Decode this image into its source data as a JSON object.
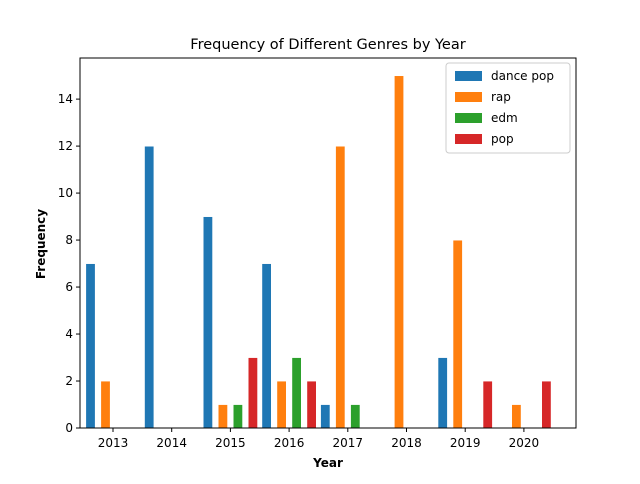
{
  "chart_data": {
    "type": "bar",
    "title": "Frequency of Different Genres by Year",
    "xlabel": "Year",
    "ylabel": "Frequency",
    "categories": [
      "2013",
      "2014",
      "2015",
      "2016",
      "2017",
      "2018",
      "2019",
      "2020"
    ],
    "ylim": [
      0,
      15.75
    ],
    "yticks": [
      "0",
      "2",
      "4",
      "6",
      "8",
      "10",
      "12",
      "14"
    ],
    "grid": false,
    "legend_position": "top-right",
    "series": [
      {
        "name": "dance pop",
        "color": "#1f77b4",
        "values": [
          7,
          12,
          9,
          7,
          1,
          0,
          3,
          0
        ]
      },
      {
        "name": "rap",
        "color": "#ff7f0e",
        "values": [
          2,
          0,
          1,
          2,
          12,
          15,
          8,
          1
        ]
      },
      {
        "name": "edm",
        "color": "#2ca02c",
        "values": [
          0,
          0,
          1,
          3,
          1,
          0,
          0,
          0
        ]
      },
      {
        "name": "pop",
        "color": "#d62728",
        "values": [
          0,
          0,
          3,
          2,
          0,
          0,
          2,
          2
        ]
      }
    ]
  }
}
